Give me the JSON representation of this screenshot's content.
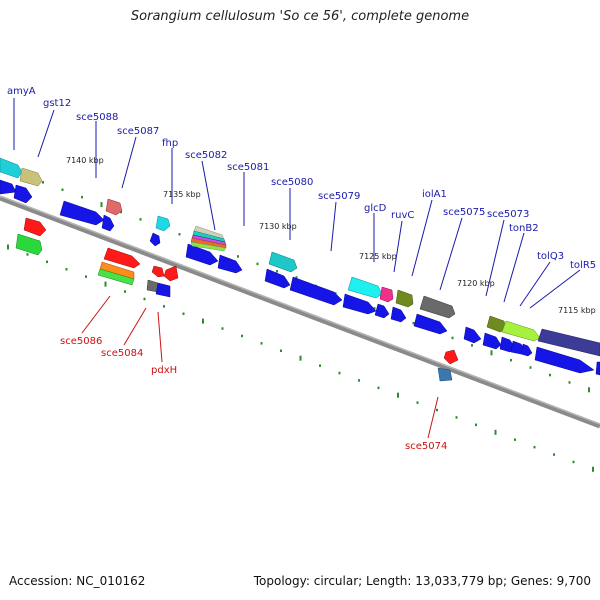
{
  "title": "Sorangium cellulosum 'So ce 56', complete genome",
  "footer": {
    "accession": "Accession: NC_010162",
    "summary": "Topology: circular; Length: 13,033,779 bp; Genes: 9,700"
  },
  "colors": {
    "plus_label": "#1a1aaa",
    "minus_label": "#cc1111",
    "backbone": "#888888",
    "cds": "#1a1ae6",
    "tick": "#2e8b2e"
  },
  "positions": [
    "7140 kbp",
    "7135 kbp",
    "7130 kbp",
    "7125 kbp",
    "7120 kbp",
    "7115 kbp"
  ],
  "plus_genes": [
    "amyA",
    "gst12",
    "sce5088",
    "sce5087",
    "fhp",
    "sce5082",
    "sce5081",
    "sce5080",
    "sce5079",
    "glcD",
    "ruvC",
    "iolA1",
    "sce5075",
    "sce5073",
    "tonB2",
    "tolQ3",
    "tolR5"
  ],
  "minus_genes": [
    "sce5086",
    "sce5084",
    "pdxH",
    "sce5074"
  ]
}
